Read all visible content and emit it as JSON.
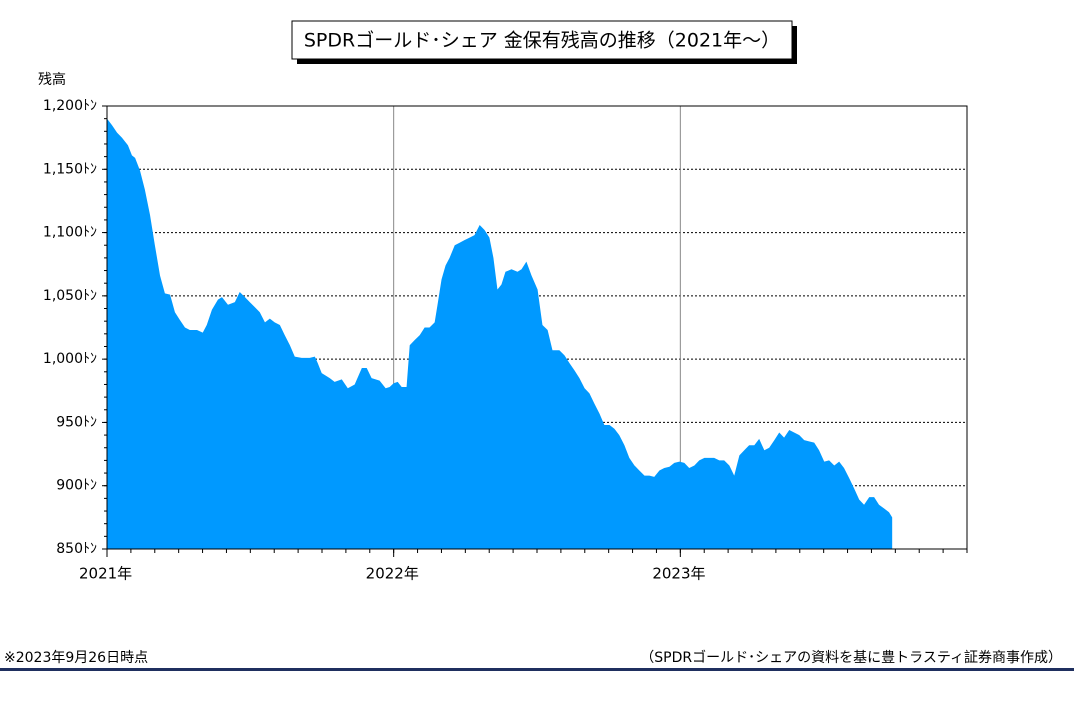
{
  "chart_data": {
    "type": "area",
    "title": "SPDRゴールド･シェア 金保有残高の推移（2021年～）",
    "y_label": "残高",
    "footnote": "※2023年9月26日時点",
    "source": "（SPDRゴールド･シェアの資料を基に豊トラスティ証券商事作成）",
    "color": "#0099ff",
    "grid": true,
    "xlim": [
      2021,
      2024
    ],
    "xticks": [
      {
        "value": 2021,
        "label": "2021年"
      },
      {
        "value": 2022,
        "label": "2022年"
      },
      {
        "value": 2023,
        "label": "2023年"
      }
    ],
    "ylim": [
      850,
      1200
    ],
    "yticks": [
      {
        "value": 850,
        "label": "850ﾄﾝ"
      },
      {
        "value": 900,
        "label": "900ﾄﾝ"
      },
      {
        "value": 950,
        "label": "950ﾄﾝ"
      },
      {
        "value": 1000,
        "label": "1,000ﾄﾝ"
      },
      {
        "value": 1050,
        "label": "1,050ﾄﾝ"
      },
      {
        "value": 1100,
        "label": "1,100ﾄﾝ"
      },
      {
        "value": 1150,
        "label": "1,150ﾄﾝ"
      },
      {
        "value": 1200,
        "label": "1,200ﾄﾝ"
      }
    ],
    "x": [
      2021.0,
      2021.017,
      2021.035,
      2021.052,
      2021.073,
      2021.087,
      2021.098,
      2021.115,
      2021.132,
      2021.15,
      2021.167,
      2021.185,
      2021.202,
      2021.22,
      2021.237,
      2021.254,
      2021.272,
      2021.289,
      2021.314,
      2021.334,
      2021.348,
      2021.366,
      2021.387,
      2021.401,
      2021.422,
      2021.446,
      2021.463,
      2021.481,
      2021.498,
      2021.516,
      2021.533,
      2021.551,
      2021.568,
      2021.585,
      2021.603,
      2021.62,
      2021.638,
      2021.655,
      2021.679,
      2021.707,
      2021.725,
      2021.735,
      2021.749,
      2021.777,
      2021.794,
      2021.819,
      2021.84,
      2021.864,
      2021.889,
      2021.906,
      2021.923,
      2021.951,
      2021.972,
      2021.986,
      2022.0,
      2022.014,
      2022.028,
      2022.045,
      2022.056,
      2022.073,
      2022.091,
      2022.108,
      2022.125,
      2022.143,
      2022.153,
      2022.167,
      2022.181,
      2022.195,
      2022.213,
      2022.23,
      2022.247,
      2022.265,
      2022.282,
      2022.3,
      2022.317,
      2022.334,
      2022.348,
      2022.362,
      2022.376,
      2022.39,
      2022.411,
      2022.432,
      2022.446,
      2022.463,
      2022.481,
      2022.502,
      2022.519,
      2022.537,
      2022.554,
      2022.578,
      2022.596,
      2022.613,
      2022.631,
      2022.648,
      2022.666,
      2022.683,
      2022.7,
      2022.718,
      2022.735,
      2022.753,
      2022.77,
      2022.787,
      2022.805,
      2022.822,
      2022.84,
      2022.857,
      2022.875,
      2022.892,
      2022.909,
      2022.927,
      2022.944,
      2022.962,
      2022.979,
      2022.997,
      2023.014,
      2023.031,
      2023.049,
      2023.066,
      2023.084,
      2023.101,
      2023.118,
      2023.136,
      2023.153,
      2023.171,
      2023.188,
      2023.206,
      2023.223,
      2023.24,
      2023.258,
      2023.275,
      2023.293,
      2023.31,
      2023.328,
      2023.345,
      2023.362,
      2023.38,
      2023.397,
      2023.415,
      2023.432,
      2023.449,
      2023.467,
      2023.484,
      2023.502,
      2023.519,
      2023.537,
      2023.554,
      2023.571,
      2023.589,
      2023.606,
      2023.624,
      2023.641,
      2023.659,
      2023.676,
      2023.693,
      2023.711,
      2023.728,
      2023.739
    ],
    "values": [
      1190,
      1185,
      1179,
      1175,
      1169,
      1161,
      1159,
      1149,
      1134,
      1114,
      1090,
      1066,
      1052,
      1051,
      1037,
      1031,
      1025,
      1023,
      1023,
      1021,
      1027,
      1039,
      1047,
      1049,
      1043,
      1045,
      1053,
      1049,
      1045,
      1041,
      1037,
      1029,
      1032,
      1029,
      1027,
      1019,
      1011,
      1002,
      1001,
      1001,
      1002,
      997,
      989,
      985,
      982,
      984,
      977,
      980,
      993,
      993,
      985,
      983,
      977,
      978,
      981,
      982,
      978,
      978,
      1011,
      1015,
      1019,
      1025,
      1025,
      1029,
      1043,
      1063,
      1074,
      1080,
      1090,
      1092,
      1094,
      1096,
      1098,
      1106,
      1102,
      1096,
      1080,
      1055,
      1059,
      1069,
      1071,
      1069,
      1071,
      1077,
      1066,
      1055,
      1027,
      1023,
      1007,
      1007,
      1003,
      997,
      991,
      985,
      977,
      973,
      965,
      957,
      948,
      948,
      945,
      940,
      932,
      922,
      916,
      912,
      908,
      908,
      907,
      912,
      914,
      915,
      918,
      919,
      918,
      914,
      916,
      920,
      922,
      922,
      922,
      920,
      920,
      916,
      908,
      924,
      928,
      932,
      932,
      937,
      928,
      930,
      936,
      942,
      938,
      944,
      942,
      940,
      936,
      935,
      934,
      928,
      919,
      920,
      916,
      919,
      914,
      906,
      898,
      889,
      885,
      891,
      891,
      885,
      882,
      879,
      875
    ]
  }
}
